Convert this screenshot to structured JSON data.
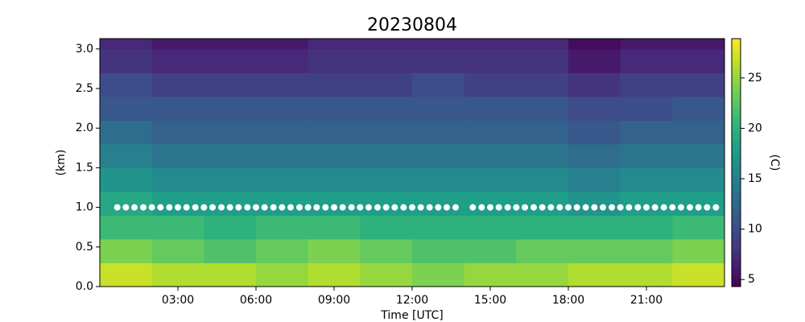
{
  "chart_data": {
    "type": "heatmap",
    "title": "20230804",
    "xlabel": "Time [UTC]",
    "ylabel": "(km)",
    "xlim": [
      0,
      24
    ],
    "ylim": [
      0,
      3.13
    ],
    "xticks": [
      {
        "value": 3,
        "label": "03:00"
      },
      {
        "value": 6,
        "label": "06:00"
      },
      {
        "value": 9,
        "label": "09:00"
      },
      {
        "value": 12,
        "label": "12:00"
      },
      {
        "value": 15,
        "label": "15:00"
      },
      {
        "value": 18,
        "label": "18:00"
      },
      {
        "value": 21,
        "label": "21:00"
      }
    ],
    "yticks": [
      {
        "value": 0,
        "label": "0.0"
      },
      0.5,
      {
        "value": 1,
        "label": "1.0"
      },
      1.5,
      {
        "value": 2,
        "label": "2.0"
      },
      2.5,
      {
        "value": 3,
        "label": "3.0"
      }
    ],
    "x_edges": [
      0,
      2,
      4,
      6,
      8,
      10,
      12,
      14,
      16,
      18,
      20,
      22,
      24
    ],
    "y_edges": [
      0,
      0.3,
      0.6,
      0.9,
      1.2,
      1.5,
      1.8,
      2.1,
      2.4,
      2.7,
      3.0,
      3.13
    ],
    "z": [
      [
        27,
        26,
        26,
        25,
        26,
        25,
        24,
        25,
        25,
        26,
        26,
        27
      ],
      [
        24,
        23,
        22,
        23,
        24,
        23,
        22,
        22,
        23,
        23,
        23,
        24
      ],
      [
        21,
        21,
        20,
        21,
        21,
        20,
        20,
        20,
        20,
        20,
        20,
        21
      ],
      [
        19,
        18,
        18,
        18,
        18,
        18,
        18,
        18,
        18,
        17,
        18,
        18
      ],
      [
        17,
        16,
        16,
        16,
        16,
        16,
        16,
        16,
        16,
        15,
        16,
        16
      ],
      [
        15,
        14,
        14,
        14,
        14,
        14,
        14,
        14,
        14,
        13,
        14,
        14
      ],
      [
        13,
        12,
        12,
        12,
        12,
        12,
        12,
        12,
        12,
        11,
        12,
        12
      ],
      [
        11,
        11,
        11,
        11,
        11,
        11,
        11,
        11,
        11,
        10,
        10,
        11
      ],
      [
        10,
        9,
        9,
        9,
        9,
        9,
        10,
        9,
        9,
        8,
        9,
        9
      ],
      [
        8,
        7,
        7,
        7,
        8,
        8,
        8,
        8,
        8,
        6,
        7,
        7
      ],
      [
        7,
        6,
        6,
        6,
        7,
        7,
        7,
        7,
        7,
        5,
        6,
        6
      ]
    ],
    "colorbar": {
      "label": "(C)",
      "lim": [
        4.3,
        28.9
      ],
      "ticks": [
        5,
        10,
        15,
        20,
        25
      ]
    },
    "markers": {
      "color": "#ffffff",
      "x": [
        0.67,
        1,
        1.33,
        1.67,
        2,
        2.33,
        2.67,
        3,
        3.33,
        3.67,
        4,
        4.33,
        4.67,
        5,
        5.33,
        5.67,
        6,
        6.33,
        6.67,
        7,
        7.33,
        7.67,
        8,
        8.33,
        8.67,
        9,
        9.33,
        9.67,
        10,
        10.33,
        10.67,
        11,
        11.33,
        11.67,
        12,
        12.33,
        12.67,
        13,
        13.33,
        13.67,
        14.33,
        14.67,
        15,
        15.33,
        15.67,
        16,
        16.33,
        16.67,
        17,
        17.33,
        17.67,
        18,
        18.33,
        18.67,
        19,
        19.33,
        19.67,
        20,
        20.33,
        20.67,
        21,
        21.33,
        21.67,
        22,
        22.33,
        22.67,
        23,
        23.33,
        23.67
      ],
      "y": [
        1,
        1,
        1,
        1,
        1,
        1,
        1,
        1,
        1,
        1,
        1,
        1,
        1,
        1,
        1,
        1,
        1,
        1,
        1,
        1,
        1,
        1,
        1,
        1,
        1,
        1,
        1,
        1,
        1,
        1,
        1,
        1,
        1,
        1,
        1,
        1,
        1,
        1,
        1,
        1,
        1,
        1,
        1,
        1,
        1,
        1,
        1,
        1,
        1,
        1,
        1,
        1,
        1,
        1,
        1,
        1,
        1,
        1,
        1,
        1,
        1,
        1,
        1,
        1,
        1,
        1,
        1,
        1,
        1
      ]
    }
  }
}
